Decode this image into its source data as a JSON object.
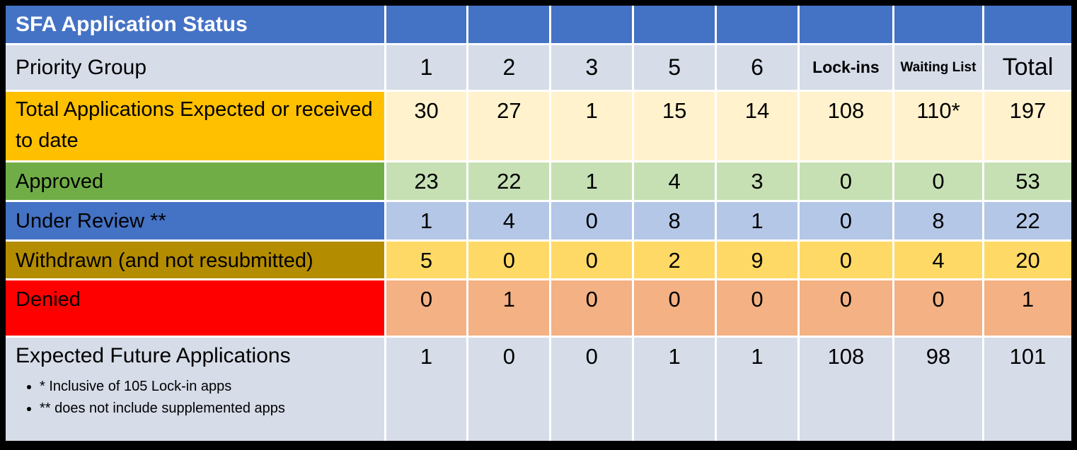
{
  "chart_data": {
    "type": "table",
    "title": "SFA Application Status",
    "row_header_label": "Priority Group",
    "columns": [
      "1",
      "2",
      "3",
      "5",
      "6",
      "Lock-ins",
      "Waiting List",
      "Total"
    ],
    "rows": [
      {
        "label": "Total Applications Expected or received to date",
        "values": [
          30,
          27,
          1,
          15,
          14,
          108,
          "110*",
          197
        ],
        "row_color": "gold"
      },
      {
        "label": "Approved",
        "values": [
          23,
          22,
          1,
          4,
          3,
          0,
          0,
          53
        ],
        "row_color": "green"
      },
      {
        "label": "Under Review **",
        "values": [
          1,
          4,
          0,
          8,
          1,
          0,
          8,
          22
        ],
        "row_color": "blue"
      },
      {
        "label": "Withdrawn (and not resubmitted)",
        "values": [
          5,
          0,
          0,
          2,
          9,
          0,
          4,
          20
        ],
        "row_color": "dark-gold"
      },
      {
        "label": "Denied",
        "values": [
          0,
          1,
          0,
          0,
          0,
          0,
          0,
          1
        ],
        "row_color": "red"
      },
      {
        "label": "Expected Future Applications",
        "values": [
          1,
          0,
          0,
          1,
          1,
          108,
          98,
          101
        ],
        "row_color": "lavender",
        "footnotes": [
          "* Inclusive of 105 Lock-in apps",
          "** does not include supplemented apps"
        ]
      }
    ],
    "colors": {
      "header_bg": "#4472C4",
      "header_text": "#FFFFFF",
      "lavender_row": "#D6DCE8",
      "gold_label": "#FFC000",
      "gold_cell": "#FFF2CC",
      "green_label": "#70AD47",
      "green_cell": "#C6E0B4",
      "blue_label": "#4472C4",
      "blue_cell": "#B4C7E7",
      "dark_gold_label": "#B48C00",
      "dark_gold_cell": "#FFD966",
      "red_label": "#FF0000",
      "red_cell": "#F4B183",
      "gridline": "#FFFFFF",
      "frame": "#000000"
    }
  }
}
